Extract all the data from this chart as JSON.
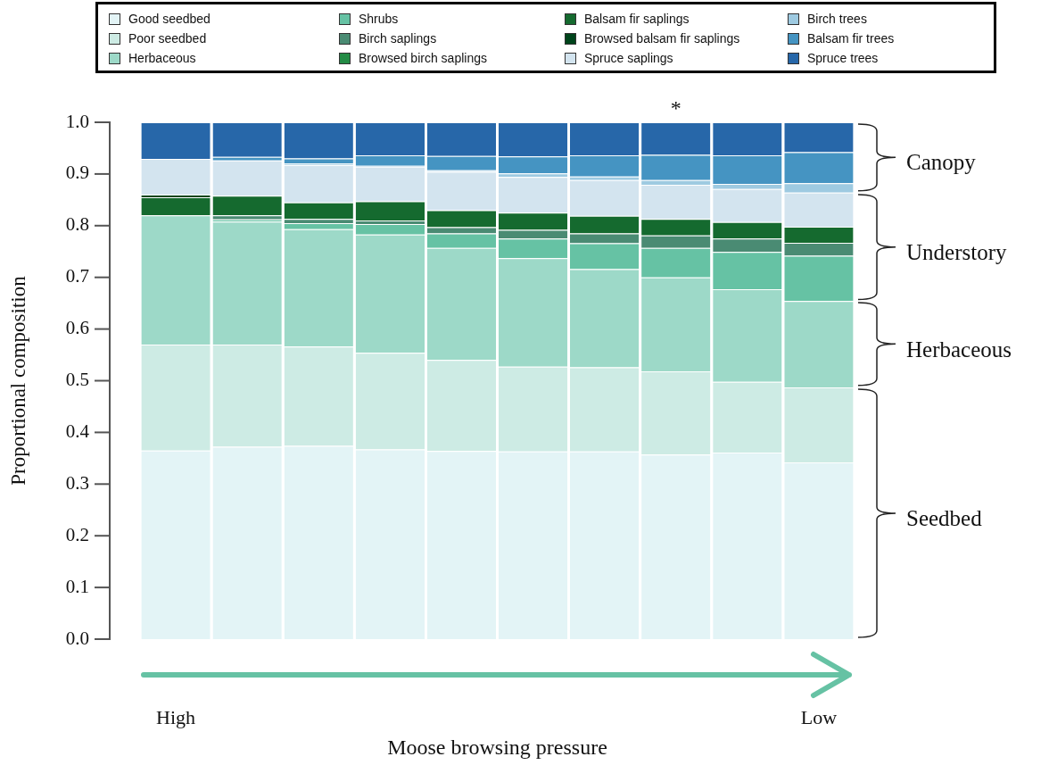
{
  "chart_data": {
    "type": "bar",
    "stacked": true,
    "categories": [
      "High",
      null,
      null,
      null,
      null,
      null,
      null,
      null,
      null,
      "Low"
    ],
    "xlabel": "Moose browsing pressure",
    "ylabel": "Proportional composition",
    "ylim": [
      0,
      1
    ],
    "yticks": [
      {
        "value": 0,
        "label": "0.0"
      },
      0.1,
      0.2,
      0.3,
      0.4,
      0.5,
      0.6,
      0.7,
      0.8,
      0.9,
      {
        "value": 1,
        "label": "1.0"
      }
    ],
    "legend": "top",
    "series": [
      {
        "name": "Good seedbed",
        "color": "#e3f4f6",
        "values": [
          0.365,
          0.372,
          0.374,
          0.367,
          0.364,
          0.363,
          0.363,
          0.357,
          0.361,
          0.342
        ]
      },
      {
        "name": "Poor seedbed",
        "color": "#cdebe4",
        "values": [
          0.205,
          0.198,
          0.192,
          0.187,
          0.176,
          0.164,
          0.163,
          0.161,
          0.137,
          0.145
        ]
      },
      {
        "name": "Herbaceous",
        "color": "#9dd9c8",
        "values": [
          0.25,
          0.238,
          0.227,
          0.229,
          0.217,
          0.21,
          0.19,
          0.182,
          0.179,
          0.167
        ]
      },
      {
        "name": "Shrubs",
        "color": "#66c2a4",
        "values": [
          0,
          0.004,
          0.012,
          0.02,
          0.028,
          0.038,
          0.05,
          0.057,
          0.072,
          0.088
        ]
      },
      {
        "name": "Birch saplings",
        "color": "#4a8b73",
        "values": [
          0,
          0.008,
          0.008,
          0.007,
          0.012,
          0.017,
          0.019,
          0.024,
          0.026,
          0.025
        ]
      },
      {
        "name": "Browsed birch saplings",
        "color": "#238b45",
        "values": [
          0,
          0,
          0,
          0,
          0,
          0,
          0,
          0,
          0,
          0
        ]
      },
      {
        "name": "Balsam fir saplings",
        "color": "#156a2f",
        "values": [
          0.035,
          0.038,
          0.032,
          0.037,
          0.033,
          0.033,
          0.034,
          0.032,
          0.032,
          0.031
        ]
      },
      {
        "name": "Browsed balsam fir saplings",
        "color": "#00441b",
        "values": [
          0.005,
          0,
          0,
          0,
          0,
          0,
          0,
          0,
          0,
          0
        ]
      },
      {
        "name": "Spruce saplings",
        "color": "#d3e4ef",
        "values": [
          0.069,
          0.068,
          0.072,
          0.067,
          0.074,
          0.069,
          0.069,
          0.066,
          0.064,
          0.066
        ]
      },
      {
        "name": "Birch trees",
        "color": "#9ecae1",
        "values": [
          0,
          0,
          0.003,
          0.002,
          0.003,
          0.007,
          0.007,
          0.009,
          0.01,
          0.018
        ]
      },
      {
        "name": "Balsam fir trees",
        "color": "#4594c2",
        "values": [
          0,
          0.007,
          0.01,
          0.02,
          0.028,
          0.033,
          0.041,
          0.049,
          0.055,
          0.06
        ]
      },
      {
        "name": "Spruce trees",
        "color": "#2767a9",
        "values": [
          0.071,
          0.067,
          0.07,
          0.064,
          0.065,
          0.066,
          0.064,
          0.063,
          0.064,
          0.058
        ],
        "value_labels": [
          null,
          null,
          null,
          null,
          null,
          null,
          null,
          "*",
          null,
          null
        ]
      }
    ],
    "annotations": [
      "Canopy",
      "Understory",
      "Herbaceous",
      "Seedbed"
    ]
  }
}
